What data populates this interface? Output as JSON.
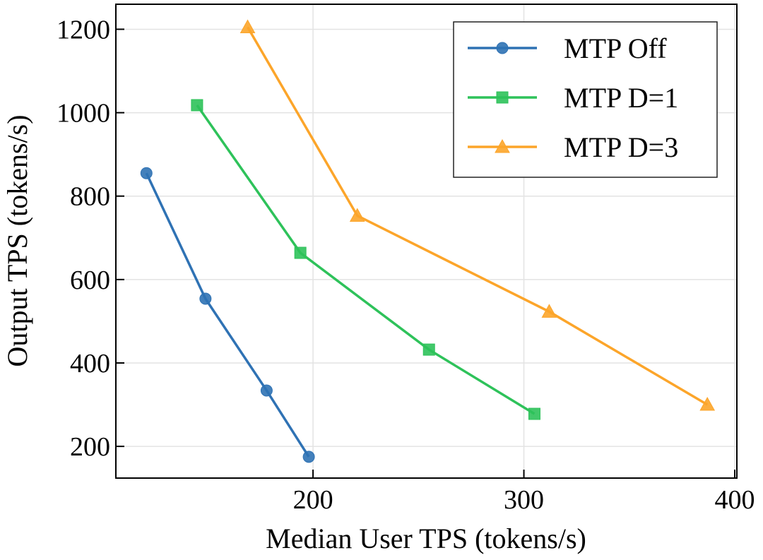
{
  "chart_data": {
    "type": "line",
    "title": "",
    "xlabel": "Median User TPS (tokens/s)",
    "ylabel": "Output TPS (tokens/s)",
    "xlim": [
      106.5,
      401
    ],
    "ylim": [
      124,
      1260
    ],
    "xticks": [
      200,
      300,
      400
    ],
    "yticks": [
      200,
      400,
      600,
      800,
      1000,
      1200
    ],
    "grid": true,
    "legend_position": "top-right",
    "series": [
      {
        "name": "MTP Off",
        "color": "#2f72b4",
        "marker": "circle",
        "x": [
          121,
          149,
          178,
          198
        ],
        "y": [
          855,
          554,
          334,
          175
        ]
      },
      {
        "name": "MTP D=1",
        "color": "#2ec25a",
        "marker": "square",
        "x": [
          145,
          194,
          255,
          305
        ],
        "y": [
          1018,
          664,
          432,
          278
        ]
      },
      {
        "name": "MTP D=3",
        "color": "#fca52a",
        "marker": "triangle",
        "x": [
          169,
          221,
          312,
          387
        ],
        "y": [
          1205,
          753,
          523,
          300
        ]
      }
    ]
  }
}
